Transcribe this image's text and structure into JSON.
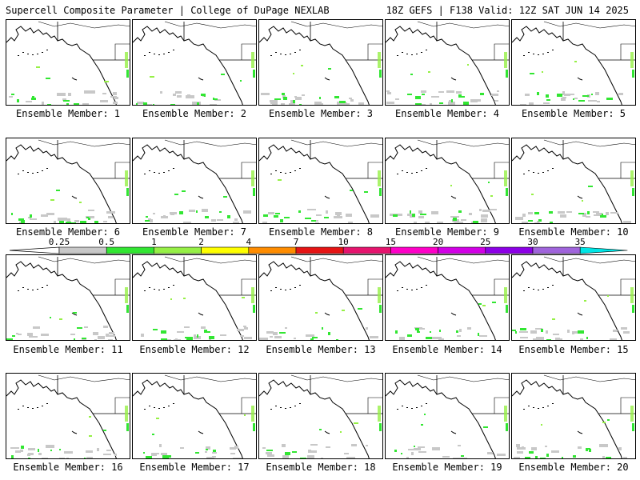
{
  "header": {
    "left": "Supercell Composite Parameter | College of DuPage NEXLAB",
    "right": "18Z GEFS | F138 Valid: 12Z SAT JUN 14 2025"
  },
  "members": [
    {
      "label": "Ensemble Member: 1"
    },
    {
      "label": "Ensemble Member: 2"
    },
    {
      "label": "Ensemble Member: 3"
    },
    {
      "label": "Ensemble Member: 4"
    },
    {
      "label": "Ensemble Member: 5"
    },
    {
      "label": "Ensemble Member: 6"
    },
    {
      "label": "Ensemble Member: 7"
    },
    {
      "label": "Ensemble Member: 8"
    },
    {
      "label": "Ensemble Member: 9"
    },
    {
      "label": "Ensemble Member: 10"
    },
    {
      "label": "Ensemble Member: 11"
    },
    {
      "label": "Ensemble Member: 12"
    },
    {
      "label": "Ensemble Member: 13"
    },
    {
      "label": "Ensemble Member: 14"
    },
    {
      "label": "Ensemble Member: 15"
    },
    {
      "label": "Ensemble Member: 16"
    },
    {
      "label": "Ensemble Member: 17"
    },
    {
      "label": "Ensemble Member: 18"
    },
    {
      "label": "Ensemble Member: 19"
    },
    {
      "label": "Ensemble Member: 20"
    }
  ],
  "legend": {
    "ticks": [
      "0.25",
      "0.5",
      "1",
      "2",
      "4",
      "7",
      "10",
      "15",
      "20",
      "25",
      "30",
      "35"
    ],
    "colors": [
      "#c8c8c8",
      "#32e632",
      "#96f046",
      "#ffff00",
      "#ff8c00",
      "#e61414",
      "#e6146e",
      "#ff00c8",
      "#d200e6",
      "#8c00e6",
      "#a064dc",
      "#00e6e6"
    ],
    "under_color": "#ffffff"
  }
}
